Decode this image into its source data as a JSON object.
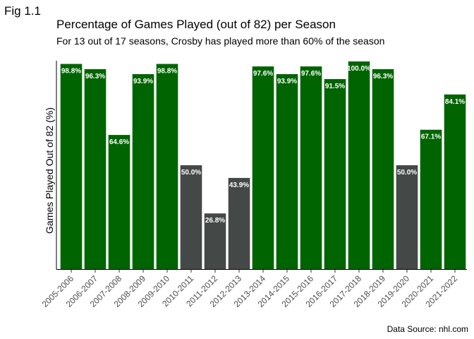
{
  "figure_label": "Fig 1.1",
  "colors": {
    "above_60": "#006400",
    "below_60": "#444846",
    "axis": "#000000",
    "tick_text": "#4d4d4d"
  },
  "chart_data": {
    "type": "bar",
    "title": "Percentage of Games Played (out of 82) per Season",
    "subtitle": "For 13 out of 17 seasons, Crosby has played more than 60% of the season",
    "xlabel": "",
    "ylabel": "Games Played Out of 82 (%)",
    "ylim": [
      0,
      100
    ],
    "grid": false,
    "caption": "Data Source: nhl.com",
    "threshold": 60,
    "categories": [
      "2005-2006",
      "2006-2007",
      "2007-2008",
      "2008-2009",
      "2009-2010",
      "2010-2011",
      "2011-2012",
      "2012-2013",
      "2013-2014",
      "2014-2015",
      "2015-2016",
      "2016-2017",
      "2017-2018",
      "2018-2019",
      "2019-2020",
      "2020-2021",
      "2021-2022"
    ],
    "values": [
      98.8,
      96.3,
      64.6,
      93.9,
      98.8,
      50.0,
      26.8,
      43.9,
      97.6,
      93.9,
      97.6,
      91.5,
      100.0,
      96.3,
      50.0,
      67.1,
      84.1
    ],
    "labels": [
      "98.8%",
      "96.3%",
      "64.6%",
      "93.9%",
      "98.8%",
      "50.0%",
      "26.8%",
      "43.9%",
      "97.6%",
      "93.9%",
      "97.6%",
      "91.5%",
      "100.0%",
      "96.3%",
      "50.0%",
      "67.1%",
      "84.1%"
    ]
  }
}
